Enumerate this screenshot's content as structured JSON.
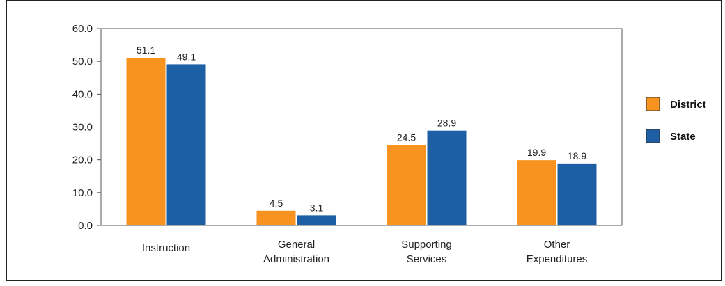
{
  "chart_data": {
    "type": "bar",
    "categories": [
      "Instruction",
      "General\nAdministration",
      "Supporting\nServices",
      "Other\nExpenditures"
    ],
    "series": [
      {
        "name": "District",
        "color": "#f7931e",
        "values": [
          51.1,
          4.5,
          24.5,
          19.9
        ]
      },
      {
        "name": "State",
        "color": "#1c5fa5",
        "values": [
          49.1,
          3.1,
          28.9,
          18.9
        ]
      }
    ],
    "y_ticks": [
      "0.0",
      "10.0",
      "20.0",
      "30.0",
      "40.0",
      "50.0",
      "60.0"
    ],
    "ylim": [
      0,
      60
    ],
    "grid": false,
    "legend_position": "right"
  }
}
